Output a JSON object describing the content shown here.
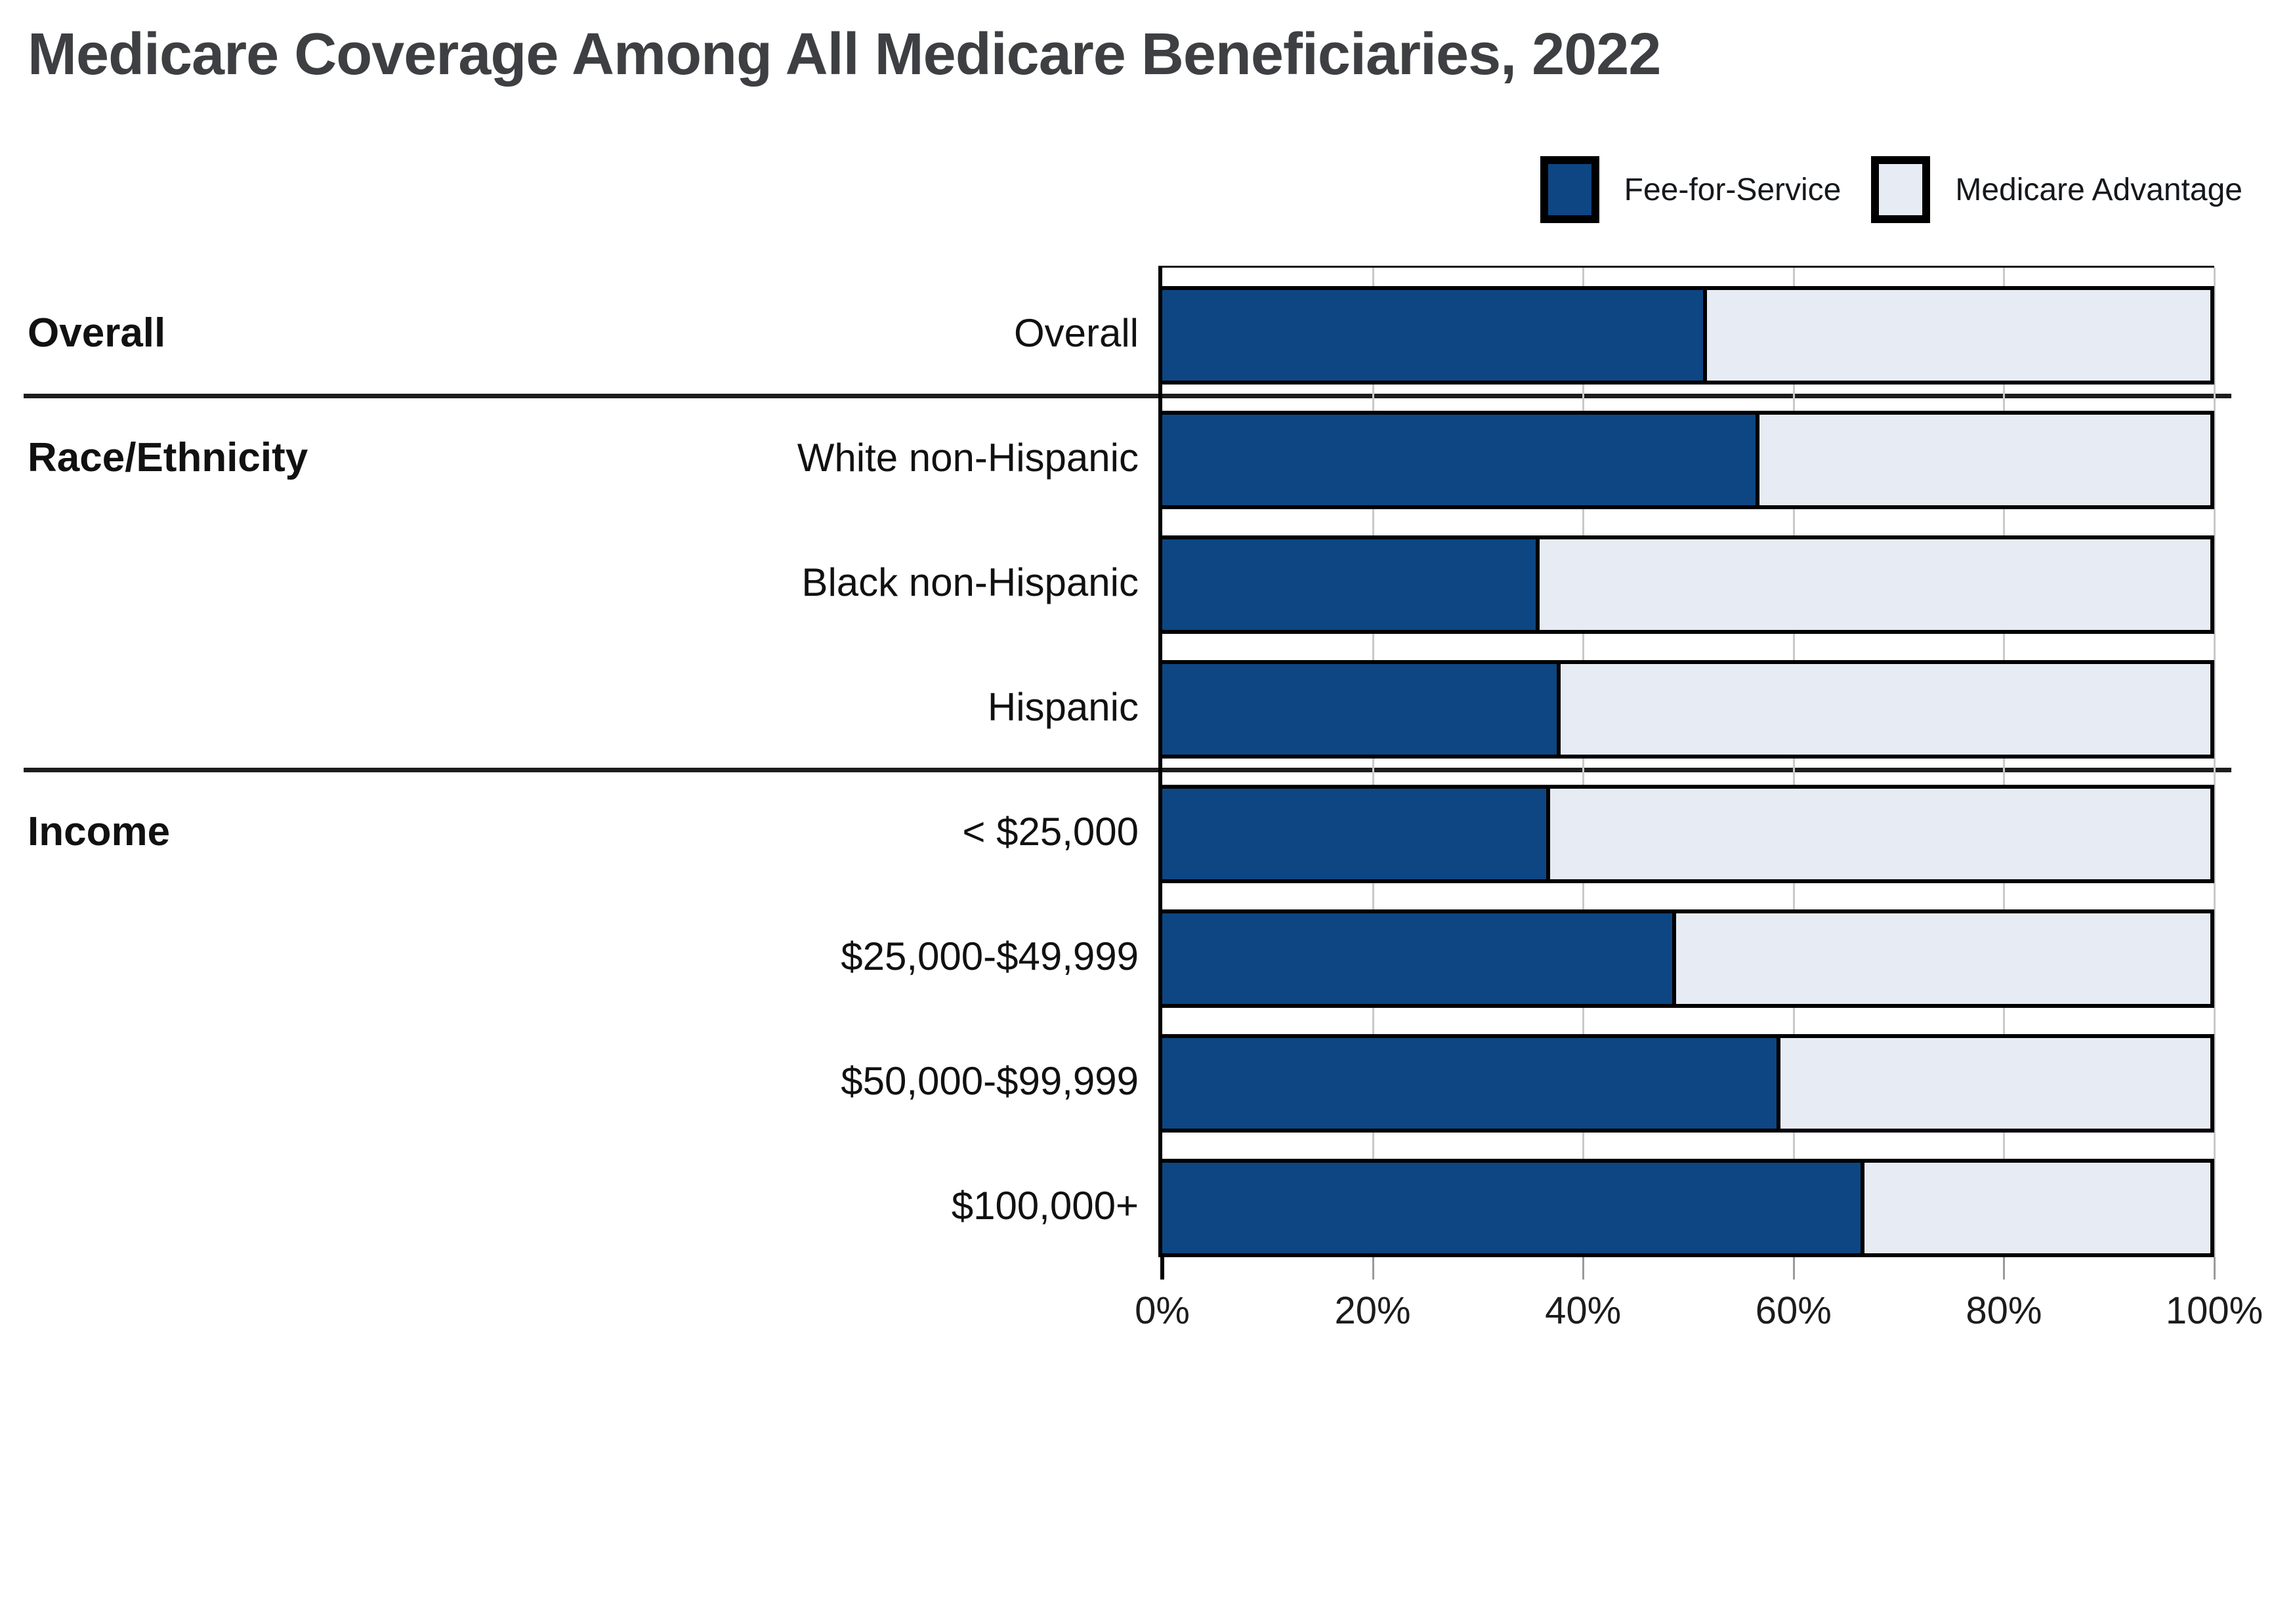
{
  "title": "Medicare Coverage Among All Medicare Beneficiaries, 2022",
  "legend": {
    "items": [
      {
        "label": "Fee-for-Service",
        "color": "#0d4683"
      },
      {
        "label": "Medicare Advantage",
        "color": "#e7ebf4"
      }
    ]
  },
  "colors": {
    "fee_for_service": "#0d4683",
    "medicare_advantage": "#e7ebf4",
    "bar_border": "#000000",
    "gridline": "#c9c9c9",
    "separator": "#1d1d1d",
    "title_text": "#3d3f42",
    "label_text": "#111111"
  },
  "chart_data": {
    "type": "bar",
    "orientation": "horizontal",
    "stacked": true,
    "title": "Medicare Coverage Among All Medicare Beneficiaries, 2022",
    "categories": [
      "Overall",
      "White non-Hispanic",
      "Black non-Hispanic",
      "Hispanic",
      "< $25,000",
      "$25,000-$49,999",
      "$50,000-$99,999",
      "$100,000+"
    ],
    "groups": [
      {
        "label": "Overall",
        "start_row": 0
      },
      {
        "label": "Race/Ethnicity",
        "start_row": 1
      },
      {
        "label": "Income",
        "start_row": 4
      }
    ],
    "separators_before_rows": [
      1,
      4
    ],
    "series": [
      {
        "name": "Fee-for-Service",
        "values": [
          52,
          57,
          36,
          38,
          37,
          49,
          59,
          67
        ]
      },
      {
        "name": "Medicare Advantage",
        "values": [
          48,
          43,
          64,
          62,
          63,
          51,
          41,
          33
        ]
      }
    ],
    "xlabel": "",
    "ylabel": "",
    "xlim": [
      0,
      100
    ],
    "x_tick_labels": [
      "0%",
      "20%",
      "40%",
      "60%",
      "80%",
      "100%"
    ],
    "x_tick_values": [
      0,
      20,
      40,
      60,
      80,
      100
    ],
    "grid": "vertical",
    "legend_position": "top-right"
  }
}
